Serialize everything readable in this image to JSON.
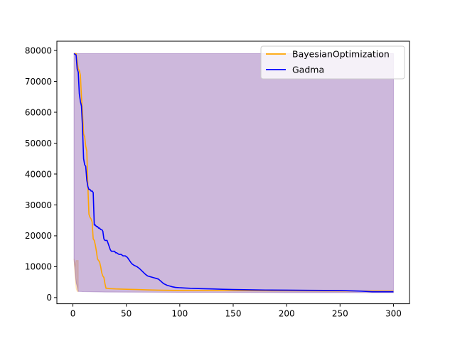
{
  "chart_data": {
    "type": "line",
    "title": "",
    "xlabel": "",
    "ylabel": "",
    "xlim": [
      -15,
      315
    ],
    "ylim": [
      -2000,
      83000
    ],
    "xticks": [
      0,
      50,
      100,
      150,
      200,
      250,
      300
    ],
    "yticks": [
      0,
      10000,
      20000,
      30000,
      40000,
      50000,
      60000,
      70000,
      80000
    ],
    "grid": false,
    "legend_position": "top-right",
    "series": [
      {
        "name": "BayesianOptimization",
        "color": "#ffa500",
        "x": [
          1,
          3,
          5,
          6,
          7,
          8,
          9,
          10,
          11,
          12,
          13,
          14,
          15,
          16,
          17,
          18,
          19,
          20,
          21,
          22,
          23,
          24,
          25,
          26,
          27,
          28,
          29,
          30,
          31,
          32,
          33,
          34,
          35,
          40,
          50,
          60,
          70,
          80,
          100,
          150,
          200,
          250,
          300
        ],
        "y": [
          79000,
          79000,
          74000,
          73500,
          72000,
          65000,
          60000,
          53000,
          52000,
          49000,
          47500,
          36000,
          27000,
          26000,
          25500,
          24500,
          19000,
          18500,
          17000,
          15000,
          12500,
          12000,
          11500,
          10000,
          8000,
          7000,
          6500,
          4500,
          3000,
          3000,
          3000,
          2900,
          2900,
          2800,
          2700,
          2600,
          2500,
          2400,
          2300,
          2250,
          2200,
          2150,
          2100
        ]
      },
      {
        "name": "Gadma",
        "color": "#0000ff",
        "x": [
          1,
          3,
          4,
          5,
          6,
          7,
          8,
          9,
          10,
          11,
          12,
          13,
          14,
          15,
          16,
          17,
          18,
          19,
          20,
          21,
          22,
          23,
          24,
          25,
          26,
          27,
          28,
          29,
          30,
          32,
          35,
          36,
          37,
          38,
          39,
          40,
          41,
          43,
          45,
          47,
          49,
          51,
          55,
          57,
          60,
          62,
          65,
          68,
          70,
          72,
          75,
          78,
          80,
          85,
          88,
          90,
          93,
          96,
          100,
          105,
          110,
          120,
          130,
          140,
          150,
          160,
          170,
          180,
          200,
          220,
          250,
          270,
          280,
          300
        ],
        "y": [
          79000,
          78500,
          74000,
          73000,
          66000,
          63500,
          62000,
          55000,
          45000,
          43000,
          42500,
          38000,
          36000,
          35000,
          35000,
          34500,
          34500,
          34000,
          23500,
          23500,
          23000,
          23000,
          22500,
          22500,
          22000,
          22000,
          21500,
          19000,
          18500,
          18500,
          15500,
          15000,
          15000,
          15000,
          15000,
          14500,
          14500,
          14000,
          14000,
          13500,
          13500,
          13000,
          11000,
          10500,
          10000,
          9500,
          8500,
          7500,
          7000,
          6800,
          6500,
          6200,
          6000,
          4500,
          4000,
          3800,
          3500,
          3300,
          3200,
          3100,
          3000,
          2900,
          2800,
          2700,
          2600,
          2550,
          2500,
          2450,
          2400,
          2350,
          2300,
          2100,
          1900,
          1900
        ]
      }
    ],
    "bands": [
      {
        "series": "BayesianOptimization",
        "color": "#ffa500",
        "x": [
          1,
          2,
          3,
          4,
          5
        ],
        "lower": [
          12500,
          7000,
          3000,
          2000,
          2000
        ],
        "upper": [
          12500,
          10000,
          12000,
          12000,
          12000
        ]
      },
      {
        "series": "Gadma",
        "color": "#4b0082",
        "x": [
          1,
          3,
          5,
          8,
          10,
          20,
          30,
          50,
          100,
          150,
          200,
          250,
          300
        ],
        "lower": [
          12500,
          5000,
          2000,
          1950,
          1900,
          1850,
          1800,
          1750,
          1700,
          1650,
          1600,
          1600,
          1600
        ],
        "upper": [
          79000,
          79000,
          79000,
          79000,
          79000,
          79000,
          79000,
          79000,
          79000,
          79000,
          79000,
          79000,
          79000
        ]
      }
    ]
  }
}
